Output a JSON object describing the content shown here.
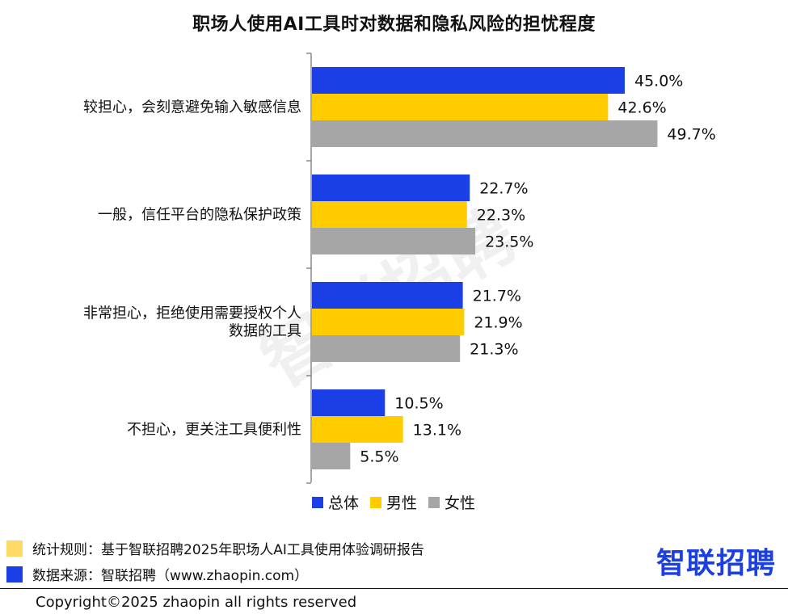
{
  "title": "职场人使用AI工具时对数据和隐私风险的担忧程度",
  "watermark": "智联招聘",
  "colors": {
    "总体": "#1a3fe6",
    "男性": "#ffcc00",
    "女性": "#a6a6a6"
  },
  "legend": [
    "总体",
    "男性",
    "女性"
  ],
  "chart_data": {
    "type": "bar",
    "orientation": "horizontal",
    "categories": [
      [
        "较担心，会刻意避免输入敏感信息"
      ],
      [
        "一般，信任平台的隐私保护政策"
      ],
      [
        "非常担心，拒绝使用需要授权个人",
        "数据的工具"
      ],
      [
        "不担心，更关注工具便利性"
      ]
    ],
    "series": [
      {
        "name": "总体",
        "values": [
          45.0,
          22.7,
          21.7,
          10.5
        ],
        "labels": [
          "45.0%",
          "22.7%",
          "21.7%",
          "10.5%"
        ]
      },
      {
        "name": "男性",
        "values": [
          42.6,
          22.3,
          21.9,
          13.1
        ],
        "labels": [
          "42.6%",
          "22.3%",
          "21.9%",
          "13.1%"
        ]
      },
      {
        "name": "女性",
        "values": [
          49.7,
          23.5,
          21.3,
          5.5
        ],
        "labels": [
          "49.7%",
          "23.5%",
          "21.3%",
          "5.5%"
        ]
      }
    ],
    "xlim": [
      0,
      55
    ],
    "grid": false,
    "legend_position": "bottom"
  },
  "footnotes": [
    {
      "text": "统计规则：基于智联招聘2025年职场人AI工具使用体验调研报告",
      "color": "#ffd966"
    },
    {
      "text": "数据来源：智联招聘（www.zhaopin.com）",
      "color": "#1a3fe6"
    }
  ],
  "brand": "智联招聘",
  "copyright": "Copyright©2025 zhaopin all rights reserved"
}
